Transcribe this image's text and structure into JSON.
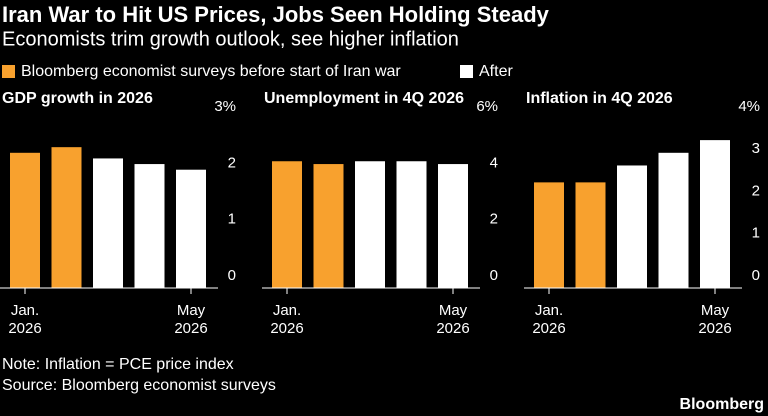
{
  "title": "Iran War to Hit US Prices, Jobs Seen Holding Steady",
  "subtitle": "Economists trim growth outlook, see higher inflation",
  "legend": [
    {
      "name": "Bloomberg economist surveys before start of Iran war",
      "color": "#f8a12e"
    },
    {
      "name": "After",
      "color": "#ffffff"
    }
  ],
  "note": "Note: Inflation = PCE price index",
  "source": "Source: Bloomberg economist surveys",
  "brand": "Bloomberg",
  "chart_data": [
    {
      "type": "bar",
      "title": "GDP growth in 2026",
      "categories": [
        "Jan.\n2026",
        null,
        null,
        null,
        "May\n2026"
      ],
      "values": [
        2.4,
        2.5,
        2.3,
        2.2,
        2.1
      ],
      "colors": [
        "#f8a12e",
        "#f8a12e",
        "#ffffff",
        "#ffffff",
        "#ffffff"
      ],
      "ylim": [
        0,
        3
      ],
      "yticks": [
        0,
        1,
        2,
        {
          "value": 3,
          "label": "3%"
        }
      ],
      "grid": false
    },
    {
      "type": "bar",
      "title": "Unemployment in 4Q 2026",
      "categories": [
        "Jan.\n2026",
        null,
        null,
        null,
        "May\n2026"
      ],
      "values": [
        4.5,
        4.4,
        4.5,
        4.5,
        4.4
      ],
      "colors": [
        "#f8a12e",
        "#f8a12e",
        "#ffffff",
        "#ffffff",
        "#ffffff"
      ],
      "ylim": [
        0,
        6
      ],
      "yticks": [
        0,
        2,
        4,
        {
          "value": 6,
          "label": "6%"
        }
      ],
      "grid": false
    },
    {
      "type": "bar",
      "title": "Inflation in 4Q 2026",
      "categories": [
        "Jan.\n2026",
        null,
        null,
        null,
        "May\n2026"
      ],
      "values": [
        2.5,
        2.5,
        2.9,
        3.2,
        3.5
      ],
      "colors": [
        "#f8a12e",
        "#f8a12e",
        "#ffffff",
        "#ffffff",
        "#ffffff"
      ],
      "ylim": [
        0,
        4
      ],
      "yticks": [
        0,
        1,
        2,
        3,
        {
          "value": 4,
          "label": "4%"
        }
      ],
      "grid": false
    }
  ]
}
